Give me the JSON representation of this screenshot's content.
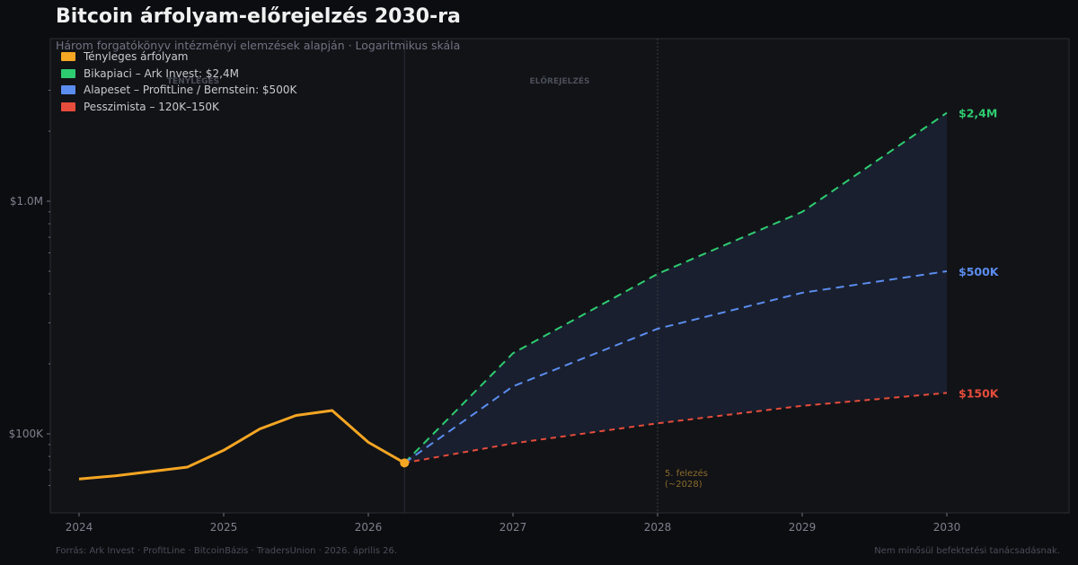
{
  "title": "Bitcoin árfolyam-előrejelzés 2030-ra",
  "subtitle": "Három forgatókönyv intézményi elemzések alapján  ·  Logaritmikus skála",
  "footer": {
    "source": "Forrás: Ark Invest · ProfitLine · BitcoinBázis · TradersUnion  ·  2026. április 26.",
    "disclaimer": "Nem minősül befektetési tanácsadásnak."
  },
  "chart_data": {
    "type": "line",
    "title": "Bitcoin árfolyam-előrejelzés 2030-ra",
    "y_scale": "log",
    "ylim": [
      50000,
      3500000
    ],
    "xlim": [
      2023.8,
      2030.85
    ],
    "x_ticks": [
      2024,
      2025,
      2026,
      2027,
      2028,
      2029,
      2030
    ],
    "x_tick_labels": [
      "2024",
      "2025",
      "2026",
      "2027",
      "2028",
      "2029",
      "2030"
    ],
    "y_ticks": [
      100000,
      1000000
    ],
    "y_tick_labels": [
      "$100K",
      "$1.0M"
    ],
    "grid": false,
    "legend_position": "top-left",
    "series": [
      {
        "name": "Tényleges árfolyam",
        "color": "#f5a623",
        "style": "solid",
        "x": [
          2024.0,
          2024.25,
          2024.75,
          2025.0,
          2025.25,
          2025.5,
          2025.75,
          2026.0,
          2026.25
        ],
        "y": [
          64000,
          66000,
          72000,
          85000,
          105000,
          120000,
          126000,
          92000,
          75000
        ]
      },
      {
        "name": "Bikapiaci  –  Ark Invest: $2,4M",
        "color": "#2ecc71",
        "style": "dashed",
        "end_label": "$2,4M",
        "x": [
          2026.25,
          2027,
          2028,
          2029,
          2030
        ],
        "y": [
          75000,
          222000,
          487000,
          900000,
          2400000
        ]
      },
      {
        "name": "Alapeset  –  ProfitLine / Bernstein: $500K",
        "color": "#5b8def",
        "style": "dashed",
        "end_label": "$500K",
        "x": [
          2026.25,
          2027,
          2028,
          2029,
          2030
        ],
        "y": [
          75000,
          160000,
          283000,
          404000,
          500000
        ]
      },
      {
        "name": "Pesszimista  –  120K–150K",
        "color": "#e74c3c",
        "style": "dashed",
        "end_label": "$150K",
        "x": [
          2026.25,
          2027,
          2028,
          2029,
          2030
        ],
        "y": [
          75000,
          91000,
          111000,
          132000,
          150000
        ]
      }
    ],
    "annotations": {
      "actual_region": "TÉNYLEGES",
      "forecast_region": "ELŐREJELZÉS",
      "halving_line1": "5. felezés",
      "halving_line2": "(~2028)",
      "halving_x": 2028,
      "split_x": 2026.25
    }
  }
}
